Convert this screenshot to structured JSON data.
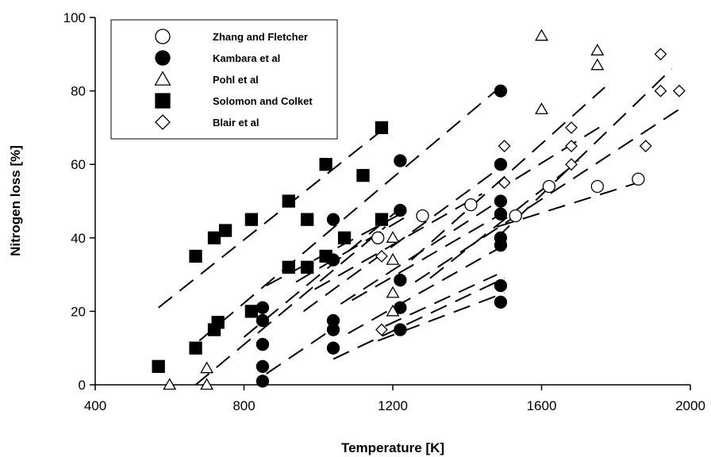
{
  "chart_data": {
    "type": "scatter",
    "xlabel": "Temperature [K]",
    "ylabel": "Nitrogen loss [%]",
    "xlim": [
      400,
      2000
    ],
    "ylim": [
      0,
      100
    ],
    "xticks": [
      400,
      800,
      1200,
      1600,
      2000
    ],
    "yticks": [
      0,
      20,
      40,
      60,
      80,
      100
    ],
    "grid": false,
    "legend_position": "top-left",
    "series": [
      {
        "name": "Zhang and Fletcher",
        "marker": "circle-open",
        "points": [
          [
            1160,
            40
          ],
          [
            1280,
            46
          ],
          [
            1410,
            49
          ],
          [
            1530,
            46
          ],
          [
            1620,
            54
          ],
          [
            1750,
            54
          ],
          [
            1860,
            56
          ]
        ]
      },
      {
        "name": "Kambara et al",
        "marker": "circle-filled",
        "points": [
          [
            850,
            21
          ],
          [
            850,
            17.5
          ],
          [
            850,
            11
          ],
          [
            850,
            5
          ],
          [
            850,
            1
          ],
          [
            1040,
            45
          ],
          [
            1040,
            34
          ],
          [
            1040,
            17.5
          ],
          [
            1040,
            15
          ],
          [
            1040,
            10
          ],
          [
            1220,
            61
          ],
          [
            1220,
            47.5
          ],
          [
            1220,
            28.5
          ],
          [
            1220,
            21
          ],
          [
            1220,
            15
          ],
          [
            1490,
            80
          ],
          [
            1490,
            60
          ],
          [
            1490,
            50
          ],
          [
            1490,
            46.5
          ],
          [
            1490,
            40
          ],
          [
            1490,
            38
          ],
          [
            1490,
            27
          ],
          [
            1490,
            22.5
          ]
        ]
      },
      {
        "name": "Pohl et al",
        "marker": "triangle-open",
        "points": [
          [
            600,
            0
          ],
          [
            700,
            0
          ],
          [
            700,
            4.5
          ],
          [
            1200,
            40
          ],
          [
            1200,
            34
          ],
          [
            1200,
            25
          ],
          [
            1200,
            20
          ],
          [
            1600,
            95
          ],
          [
            1600,
            75
          ],
          [
            1750,
            91
          ],
          [
            1750,
            87
          ]
        ]
      },
      {
        "name": "Solomon and Colket",
        "marker": "square-filled",
        "points": [
          [
            570,
            5
          ],
          [
            670,
            35
          ],
          [
            670,
            10
          ],
          [
            720,
            40
          ],
          [
            720,
            15
          ],
          [
            730,
            17
          ],
          [
            750,
            42
          ],
          [
            820,
            45
          ],
          [
            820,
            20
          ],
          [
            920,
            50
          ],
          [
            920,
            32
          ],
          [
            970,
            45
          ],
          [
            970,
            32
          ],
          [
            1020,
            60
          ],
          [
            1020,
            35
          ],
          [
            1070,
            40
          ],
          [
            1120,
            57
          ],
          [
            1170,
            70
          ],
          [
            1170,
            45
          ]
        ]
      },
      {
        "name": "Blair et al",
        "marker": "diamond-open",
        "points": [
          [
            1170,
            35
          ],
          [
            1170,
            15
          ],
          [
            1500,
            65
          ],
          [
            1500,
            55
          ],
          [
            1680,
            70
          ],
          [
            1680,
            65
          ],
          [
            1680,
            60
          ],
          [
            1880,
            65
          ],
          [
            1920,
            90
          ],
          [
            1920,
            80
          ],
          [
            1970,
            80
          ]
        ]
      }
    ],
    "trend_lines": [
      [
        [
          570,
          21
        ],
        [
          1180,
          70
        ]
      ],
      [
        [
          670,
          0
        ],
        [
          1180,
          43
        ]
      ],
      [
        [
          680,
          12
        ],
        [
          1500,
          82
        ]
      ],
      [
        [
          800,
          13
        ],
        [
          1220,
          48
        ]
      ],
      [
        [
          860,
          27
        ],
        [
          1230,
          47
        ]
      ],
      [
        [
          860,
          3
        ],
        [
          1050,
          16
        ]
      ],
      [
        [
          940,
          28
        ],
        [
          1240,
          46
        ]
      ],
      [
        [
          960,
          20
        ],
        [
          1500,
          60
        ]
      ],
      [
        [
          990,
          26
        ],
        [
          1440,
          52
        ]
      ],
      [
        [
          1040,
          7
        ],
        [
          1500,
          29
        ]
      ],
      [
        [
          1060,
          22
        ],
        [
          1500,
          51
        ]
      ],
      [
        [
          1080,
          14
        ],
        [
          1500,
          38
        ]
      ],
      [
        [
          1090,
          23
        ],
        [
          1500,
          47
        ]
      ],
      [
        [
          1160,
          12
        ],
        [
          1500,
          25
        ]
      ],
      [
        [
          1250,
          34
        ],
        [
          1770,
          81
        ]
      ],
      [
        [
          1180,
          16
        ],
        [
          1480,
          30
        ]
      ],
      [
        [
          1260,
          28
        ],
        [
          1970,
          75
        ]
      ],
      [
        [
          1300,
          29
        ],
        [
          1700,
          61
        ]
      ],
      [
        [
          1480,
          40
        ],
        [
          1950,
          86
        ]
      ],
      [
        [
          1480,
          43
        ],
        [
          1890,
          56
        ]
      ],
      [
        [
          1530,
          56
        ],
        [
          1770,
          71
        ]
      ]
    ]
  }
}
